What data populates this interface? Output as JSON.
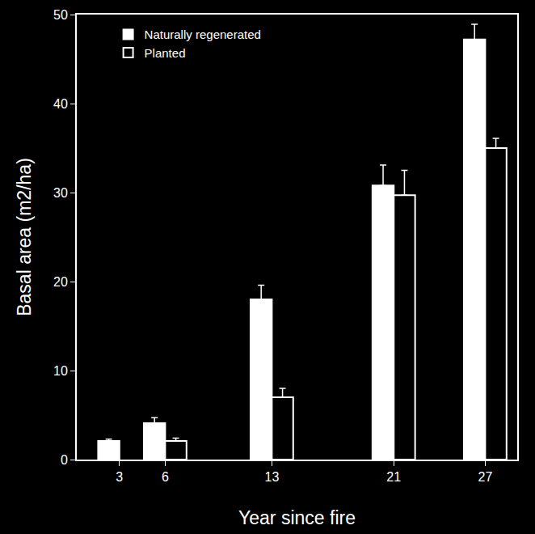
{
  "chart_data": {
    "type": "bar",
    "x_label": "Year since fire",
    "y_label": "Basal area (m2/ha)",
    "x": [
      3,
      6,
      13,
      21,
      27
    ],
    "series": [
      {
        "name": "Naturally regenerated",
        "color": "#ffffff",
        "values": [
          2.1,
          4.1,
          18.0,
          30.8,
          47.2
        ],
        "errors": [
          0.2,
          0.6,
          1.6,
          2.3,
          1.7
        ]
      },
      {
        "name": "Planted",
        "color": "#000000",
        "values": [
          null,
          2.1,
          7.0,
          29.7,
          35.0
        ],
        "errors": [
          null,
          0.3,
          1.0,
          2.8,
          1.1
        ]
      }
    ],
    "xlim": [
      0.2,
      29.1
    ],
    "xticks": [
      3,
      6,
      13,
      21,
      27
    ],
    "ylim": [
      0,
      50
    ],
    "yticks": [
      0,
      10,
      20,
      30,
      40,
      50
    ],
    "legend": "upper left",
    "grid": false
  }
}
